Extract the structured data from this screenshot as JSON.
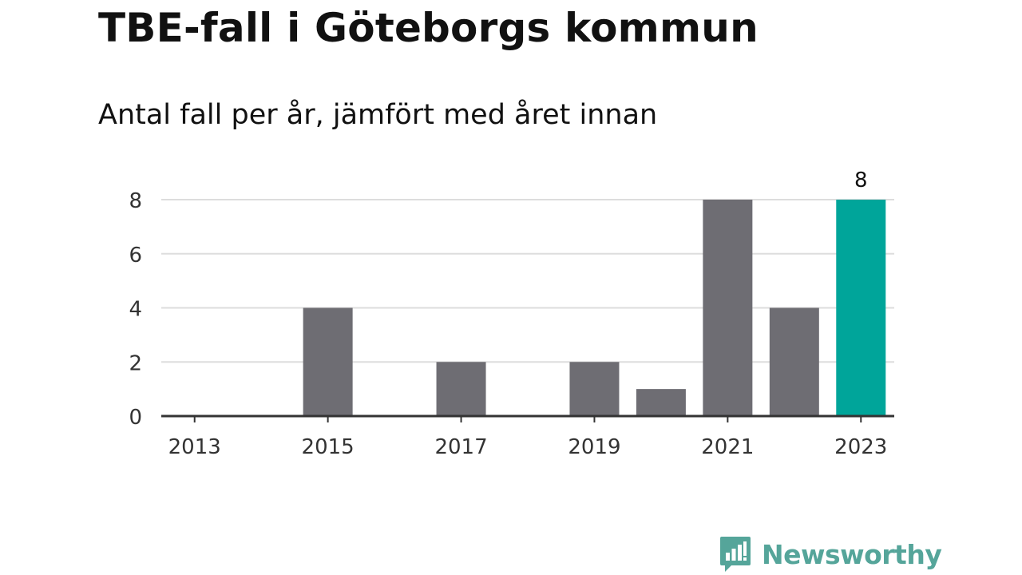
{
  "header": {
    "title": "TBE-fall i Göteborgs kommun",
    "subtitle": "Antal fall per år, jämfört med året innan"
  },
  "brand": {
    "name": "Newsworthy",
    "color": "#55a59a"
  },
  "chart_data": {
    "type": "bar",
    "categories": [
      "2013",
      "2014",
      "2015",
      "2016",
      "2017",
      "2018",
      "2019",
      "2020",
      "2021",
      "2022",
      "2023"
    ],
    "x_tick_labels": [
      "2013",
      "2015",
      "2017",
      "2019",
      "2021",
      "2023"
    ],
    "values": [
      0,
      0,
      4,
      0,
      2,
      0,
      2,
      1,
      8,
      4,
      8
    ],
    "highlight_category": "2023",
    "data_labels": [
      {
        "category": "2023",
        "text": "8"
      }
    ],
    "y_ticks": [
      0,
      2,
      4,
      6,
      8
    ],
    "ylim": [
      0,
      8
    ],
    "grid": true,
    "colors": {
      "bar": "#6e6d73",
      "highlight": "#00a59a",
      "grid": "#dddddd",
      "axis": "#333333"
    }
  }
}
